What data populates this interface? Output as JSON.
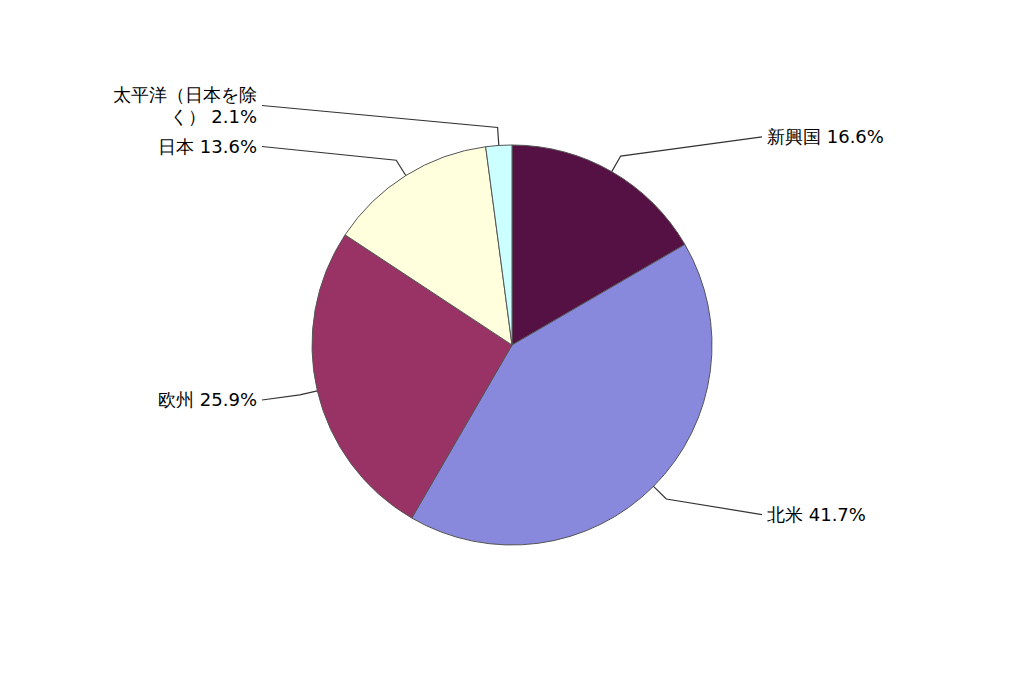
{
  "chart_data": {
    "type": "pie",
    "categories": [
      "新興国 16.6%",
      "北米 41.7%",
      "欧州 25.9%",
      "日本 13.6%",
      "太平洋（日本を除\nく） 2.1%"
    ],
    "values": [
      16.6,
      41.7,
      25.9,
      13.6,
      2.1
    ],
    "colors": [
      "#551144",
      "#8888dd",
      "#993366",
      "#ffffdd",
      "#ccffff"
    ]
  }
}
